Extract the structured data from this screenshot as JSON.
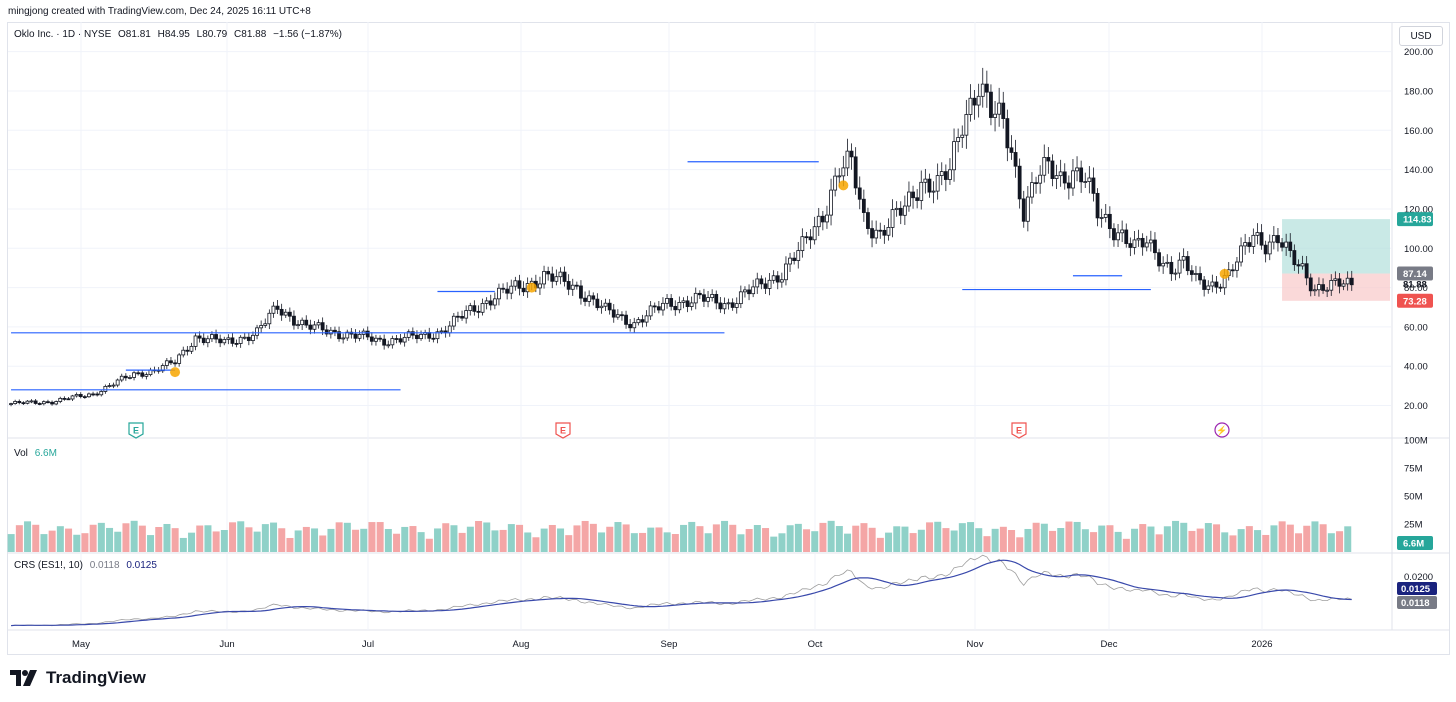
{
  "header": {
    "attribution": "mingjong created with TradingView.com, Dec 24, 2025 16:11 UTC+8"
  },
  "legend": {
    "symbol": "Oklo Inc. · 1D · NYSE",
    "open": "O81.81",
    "high": "H84.95",
    "low": "L80.79",
    "close": "C81.88",
    "change": "−1.56 (−1.87%)"
  },
  "currency_button": "USD",
  "volume_legend": {
    "label": "Vol",
    "value": "6.6M"
  },
  "crs_legend": {
    "label": "CRS (ES1!, 10)",
    "value1": "0.0118",
    "value2": "0.0125"
  },
  "price_labels": {
    "target": "114.83",
    "entry": "87.14",
    "last": "81.88",
    "stop": "73.28"
  },
  "volume_label": "6.6M",
  "crs_labels": {
    "upper": "0.0125",
    "lower": "0.0118"
  },
  "event_markers": [
    {
      "letter": "E",
      "kind": "earnings-green"
    },
    {
      "letter": "E",
      "kind": "earnings-red"
    },
    {
      "letter": "E",
      "kind": "earnings-red"
    },
    {
      "letter": "⚡",
      "kind": "event-purple"
    }
  ],
  "footer": {
    "brand": "TradingView"
  },
  "colors": {
    "up": "#26a69a",
    "down": "#ef5350",
    "up_vol": "#8fd1c8",
    "down_vol": "#f4a6a6",
    "line_blue": "#2962ff",
    "crs_main": "#3949ab",
    "crs_grey": "#9e9e9e",
    "target_zone": "#b2dfdb",
    "stop_zone": "#f8c9c9"
  },
  "chart_data": {
    "type": "candlestick",
    "title": "Oklo Inc. · 1D · NYSE",
    "price_axis": {
      "ticks": [
        20,
        40,
        60,
        80,
        100,
        120,
        140,
        160,
        180,
        200
      ],
      "ylim": [
        4,
        210
      ]
    },
    "time_axis": {
      "ticks": [
        "May",
        "Jun",
        "Jul",
        "Aug",
        "Sep",
        "Oct",
        "Nov",
        "Dec",
        "2026"
      ]
    },
    "close_path": [
      [
        0,
        21
      ],
      [
        10,
        22
      ],
      [
        20,
        26
      ],
      [
        30,
        36
      ],
      [
        35,
        38
      ],
      [
        40,
        42
      ],
      [
        45,
        55
      ],
      [
        52,
        52
      ],
      [
        60,
        57
      ],
      [
        65,
        70
      ],
      [
        72,
        60
      ],
      [
        80,
        57
      ],
      [
        90,
        53
      ],
      [
        100,
        55
      ],
      [
        105,
        58
      ],
      [
        112,
        68
      ],
      [
        118,
        76
      ],
      [
        124,
        80
      ],
      [
        130,
        86
      ],
      [
        138,
        80
      ],
      [
        145,
        68
      ],
      [
        152,
        62
      ],
      [
        160,
        72
      ],
      [
        168,
        74
      ],
      [
        175,
        72
      ],
      [
        182,
        80
      ],
      [
        188,
        88
      ],
      [
        193,
        100
      ],
      [
        198,
        118
      ],
      [
        202,
        140
      ],
      [
        205,
        142
      ],
      [
        208,
        115
      ],
      [
        212,
        108
      ],
      [
        218,
        120
      ],
      [
        222,
        135
      ],
      [
        226,
        132
      ],
      [
        229,
        138
      ],
      [
        232,
        165
      ],
      [
        236,
        185
      ],
      [
        239,
        168
      ],
      [
        242,
        163
      ],
      [
        244,
        150
      ],
      [
        247,
        120
      ],
      [
        250,
        135
      ],
      [
        253,
        140
      ],
      [
        256,
        136
      ],
      [
        259,
        140
      ],
      [
        262,
        135
      ],
      [
        265,
        117
      ],
      [
        268,
        112
      ],
      [
        271,
        108
      ],
      [
        274,
        100
      ],
      [
        277,
        102
      ],
      [
        280,
        96
      ],
      [
        283,
        90
      ],
      [
        286,
        92
      ],
      [
        289,
        83
      ],
      [
        293,
        82
      ],
      [
        297,
        86
      ],
      [
        300,
        96
      ],
      [
        303,
        108
      ],
      [
        306,
        103
      ],
      [
        309,
        104
      ],
      [
        312,
        95
      ],
      [
        315,
        90
      ],
      [
        318,
        80
      ],
      [
        322,
        80
      ],
      [
        325,
        82
      ],
      [
        327,
        82
      ]
    ],
    "volume_axis": {
      "ticks": [
        "25M",
        "50M",
        "75M",
        "100M"
      ],
      "ylim": [
        0,
        100
      ]
    },
    "volume_last": "6.6M",
    "crs_axis": {
      "ticks": [
        "0.0200"
      ]
    },
    "crs_last": {
      "crs": 0.0118,
      "ma": 0.0125
    },
    "horizontal_lines": [
      {
        "price": 28,
        "from_bar": 0,
        "to_bar": 95
      },
      {
        "price": 57,
        "from_bar": 0,
        "to_bar": 174
      },
      {
        "price": 38,
        "from_bar": 28,
        "to_bar": 40
      },
      {
        "price": 78,
        "from_bar": 104,
        "to_bar": 118
      },
      {
        "price": 144,
        "from_bar": 165,
        "to_bar": 197
      },
      {
        "price": 79,
        "from_bar": 232,
        "to_bar": 278
      },
      {
        "price": 86,
        "from_bar": 259,
        "to_bar": 271
      }
    ],
    "position": {
      "target": 114.83,
      "entry": 87.14,
      "stop": 73.28,
      "last": 81.88
    },
    "bar_count": 328
  }
}
